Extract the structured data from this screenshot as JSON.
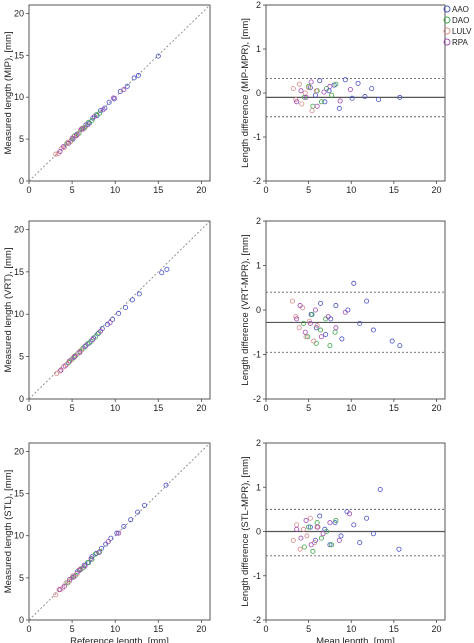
{
  "chart_data": [
    {
      "id": "mip_corr",
      "type": "scatter",
      "xlim": [
        0,
        21
      ],
      "ylim": [
        0,
        21
      ],
      "xticks": [
        "0",
        "5",
        "10",
        "15",
        "20"
      ],
      "yticks": [
        "0",
        "5",
        "10",
        "15",
        "20"
      ],
      "xlabel": "",
      "ylabel": "Measured length (MIP), [mm]",
      "identity_line": true,
      "series": [
        {
          "name": "AAO",
          "x": [
            5.1,
            5.6,
            6.0,
            6.3,
            6.6,
            7.0,
            7.4,
            7.9,
            8.3,
            8.8,
            9.3,
            9.9,
            10.6,
            11.4,
            12.2,
            12.7,
            15.0
          ],
          "y": [
            5.0,
            5.6,
            6.1,
            6.2,
            6.7,
            6.9,
            7.5,
            7.8,
            8.4,
            8.7,
            9.4,
            9.8,
            10.7,
            11.3,
            12.3,
            12.6,
            14.9
          ]
        },
        {
          "name": "DAO",
          "x": [
            4.4,
            4.9,
            5.3,
            5.8,
            6.2,
            6.5,
            6.9,
            7.3,
            7.8,
            8.2
          ],
          "y": [
            4.5,
            4.8,
            5.4,
            5.7,
            6.3,
            6.4,
            7.0,
            7.2,
            7.9,
            8.1
          ]
        },
        {
          "name": "LULV",
          "x": [
            3.1,
            3.4,
            3.8,
            4.1,
            4.5,
            4.8,
            5.2,
            5.6,
            6.0,
            6.4
          ],
          "y": [
            3.2,
            3.3,
            3.9,
            4.0,
            4.6,
            4.7,
            5.3,
            5.5,
            6.1,
            6.3
          ]
        },
        {
          "name": "RPA",
          "x": [
            3.6,
            4.0,
            4.6,
            5.0,
            5.5,
            6.1,
            6.8,
            7.6,
            8.6,
            9.8,
            11.0
          ],
          "y": [
            3.5,
            4.1,
            4.5,
            5.1,
            5.4,
            6.2,
            6.7,
            7.7,
            8.5,
            9.9,
            10.9
          ]
        }
      ]
    },
    {
      "id": "mip_ba",
      "type": "scatter",
      "xlim": [
        0,
        21
      ],
      "ylim": [
        -2,
        2
      ],
      "xticks": [
        "0",
        "5",
        "10",
        "15",
        "20"
      ],
      "yticks": [
        "-2",
        "-1",
        "0",
        "1",
        "2"
      ],
      "xlabel": "",
      "ylabel": "Length difference (MIP-MPR), [mm]",
      "mean": -0.1,
      "upper_loa": 0.33,
      "lower_loa": -0.54,
      "series": [
        {
          "name": "AAO",
          "x": [
            5.2,
            5.8,
            6.3,
            6.9,
            7.4,
            8.0,
            8.6,
            9.3,
            10.1,
            10.8,
            11.6,
            12.4,
            13.2,
            15.7
          ],
          "y": [
            0.12,
            -0.05,
            0.28,
            -0.2,
            0.05,
            0.18,
            -0.35,
            0.3,
            -0.12,
            0.22,
            -0.08,
            0.1,
            -0.15,
            -0.1
          ]
        },
        {
          "name": "DAO",
          "x": [
            4.5,
            5.0,
            5.5,
            6.0,
            6.5,
            7.1,
            7.7,
            8.2
          ],
          "y": [
            -0.1,
            0.15,
            -0.3,
            0.05,
            -0.2,
            0.1,
            -0.05,
            0.2
          ]
        },
        {
          "name": "LULV",
          "x": [
            3.2,
            3.5,
            3.9,
            4.2,
            4.6,
            5.0,
            5.4,
            5.9
          ],
          "y": [
            0.1,
            -0.15,
            0.2,
            -0.25,
            0.0,
            0.12,
            -0.4,
            0.05
          ]
        },
        {
          "name": "RPA",
          "x": [
            3.6,
            4.1,
            4.7,
            5.3,
            6.0,
            6.8,
            7.5,
            8.7,
            9.9
          ],
          "y": [
            -0.2,
            0.05,
            -0.1,
            0.25,
            -0.3,
            0.02,
            0.15,
            -0.18,
            0.08
          ]
        }
      ]
    },
    {
      "id": "vrt_corr",
      "type": "scatter",
      "xlim": [
        0,
        21
      ],
      "ylim": [
        0,
        21
      ],
      "xticks": [
        "0",
        "5",
        "10",
        "15",
        "20"
      ],
      "yticks": [
        "0",
        "5",
        "10",
        "15",
        "20"
      ],
      "xlabel": "",
      "ylabel": "Measured length (VRT), [mm]",
      "identity_line": true,
      "series": [
        {
          "name": "AAO",
          "x": [
            5.2,
            5.7,
            6.1,
            6.5,
            7.0,
            7.5,
            8.0,
            8.5,
            9.1,
            9.7,
            10.4,
            11.2,
            12.0,
            12.8,
            15.4,
            16.0
          ],
          "y": [
            4.9,
            5.4,
            5.8,
            6.2,
            6.6,
            7.2,
            7.7,
            8.3,
            8.8,
            9.4,
            10.1,
            10.8,
            11.7,
            12.4,
            14.9,
            15.3
          ]
        },
        {
          "name": "DAO",
          "x": [
            4.6,
            5.0,
            5.4,
            5.9,
            6.3,
            6.8,
            7.2,
            7.7,
            8.1
          ],
          "y": [
            4.3,
            4.7,
            5.1,
            5.6,
            6.0,
            6.5,
            6.8,
            7.3,
            7.8
          ]
        },
        {
          "name": "LULV",
          "x": [
            3.2,
            3.6,
            4.0,
            4.4,
            4.8,
            5.2,
            5.7,
            6.1
          ],
          "y": [
            3.0,
            3.3,
            3.8,
            4.1,
            4.5,
            5.0,
            5.4,
            5.8
          ]
        },
        {
          "name": "RPA",
          "x": [
            3.7,
            4.2,
            4.7,
            5.3,
            5.9,
            6.6,
            7.4,
            8.3,
            9.4
          ],
          "y": [
            3.4,
            3.9,
            4.5,
            5.0,
            5.5,
            6.3,
            7.0,
            8.0,
            9.0
          ]
        }
      ]
    },
    {
      "id": "vrt_ba",
      "type": "scatter",
      "xlim": [
        0,
        21
      ],
      "ylim": [
        -2,
        2
      ],
      "xticks": [
        "0",
        "5",
        "10",
        "15",
        "20"
      ],
      "yticks": [
        "-2",
        "-1",
        "0",
        "1",
        "2"
      ],
      "xlabel": "",
      "ylabel": "Length difference (VRT-MPR), [mm]",
      "mean": -0.28,
      "upper_loa": 0.4,
      "lower_loa": -0.95,
      "series": [
        {
          "name": "AAO",
          "x": [
            5.3,
            5.9,
            6.4,
            7.0,
            7.6,
            8.2,
            8.9,
            9.6,
            10.3,
            11.0,
            11.8,
            12.6,
            14.8,
            15.7
          ],
          "y": [
            -0.1,
            -0.4,
            0.15,
            -0.55,
            -0.2,
            0.1,
            -0.65,
            0.0,
            0.6,
            -0.3,
            0.2,
            -0.45,
            -0.7,
            -0.8
          ]
        },
        {
          "name": "DAO",
          "x": [
            4.4,
            4.9,
            5.4,
            5.9,
            6.4,
            7.0,
            7.5,
            8.1
          ],
          "y": [
            -0.3,
            -0.6,
            -0.1,
            -0.75,
            -0.45,
            -0.2,
            -0.8,
            -0.5
          ]
        },
        {
          "name": "LULV",
          "x": [
            3.1,
            3.5,
            3.9,
            4.3,
            4.7,
            5.1,
            5.6,
            6.0
          ],
          "y": [
            0.2,
            -0.15,
            -0.4,
            0.05,
            -0.6,
            -0.25,
            -0.7,
            -0.35
          ]
        },
        {
          "name": "RPA",
          "x": [
            3.6,
            4.0,
            4.6,
            5.2,
            5.8,
            6.5,
            7.3,
            8.2,
            9.3
          ],
          "y": [
            -0.2,
            0.1,
            -0.5,
            -0.3,
            0.0,
            -0.6,
            -0.15,
            -0.4,
            -0.05
          ]
        }
      ]
    },
    {
      "id": "stl_corr",
      "type": "scatter",
      "xlim": [
        0,
        21
      ],
      "ylim": [
        0,
        21
      ],
      "xticks": [
        "0",
        "5",
        "10",
        "15",
        "20"
      ],
      "yticks": [
        "0",
        "5",
        "10",
        "15",
        "20"
      ],
      "xlabel": "Reference length, [mm]",
      "ylabel": "Measured length (STL), [mm]",
      "identity_line": true,
      "series": [
        {
          "name": "AAO",
          "x": [
            5.1,
            5.6,
            6.0,
            6.4,
            6.9,
            7.3,
            7.8,
            8.4,
            8.9,
            9.5,
            10.2,
            11.0,
            11.8,
            12.6,
            13.4,
            15.9
          ],
          "y": [
            5.2,
            5.7,
            6.0,
            6.5,
            6.8,
            7.5,
            7.9,
            8.5,
            9.0,
            9.7,
            10.3,
            11.1,
            11.9,
            12.8,
            13.6,
            16.0
          ]
        },
        {
          "name": "DAO",
          "x": [
            4.5,
            5.0,
            5.4,
            5.9,
            6.3,
            6.8,
            7.3,
            7.7,
            8.2
          ],
          "y": [
            4.4,
            5.0,
            5.3,
            5.9,
            6.2,
            6.8,
            7.2,
            7.8,
            8.1
          ]
        },
        {
          "name": "LULV",
          "x": [
            3.1,
            3.5,
            3.9,
            4.3,
            4.7,
            5.1,
            5.6,
            6.0
          ],
          "y": [
            3.0,
            3.6,
            3.8,
            4.4,
            4.6,
            5.2,
            5.5,
            6.1
          ]
        },
        {
          "name": "RPA",
          "x": [
            3.6,
            4.1,
            4.7,
            5.2,
            5.8,
            6.5,
            7.2,
            8.1,
            9.2,
            10.4
          ],
          "y": [
            3.6,
            4.0,
            4.8,
            5.1,
            5.9,
            6.4,
            7.3,
            8.0,
            9.3,
            10.3
          ]
        }
      ]
    },
    {
      "id": "stl_ba",
      "type": "scatter",
      "xlim": [
        0,
        21
      ],
      "ylim": [
        -2,
        2
      ],
      "xticks": [
        "0",
        "5",
        "10",
        "15",
        "20"
      ],
      "yticks": [
        "-2",
        "-1",
        "0",
        "1",
        "2"
      ],
      "xlabel": "Mean length, [mm]",
      "ylabel": "Length difference (STL-MPR), [mm]",
      "mean": 0.0,
      "upper_loa": 0.5,
      "lower_loa": -0.55,
      "series": [
        {
          "name": "AAO",
          "x": [
            5.2,
            5.8,
            6.3,
            6.9,
            7.5,
            8.1,
            8.8,
            9.5,
            10.3,
            11.0,
            11.8,
            12.6,
            13.4,
            15.6
          ],
          "y": [
            0.1,
            -0.2,
            0.35,
            0.05,
            -0.3,
            0.2,
            -0.1,
            0.45,
            0.15,
            -0.25,
            0.3,
            -0.05,
            0.95,
            -0.4
          ]
        },
        {
          "name": "DAO",
          "x": [
            4.5,
            5.0,
            5.5,
            6.0,
            6.5,
            7.1,
            7.7,
            8.2
          ],
          "y": [
            -0.35,
            0.1,
            -0.45,
            0.2,
            -0.15,
            0.0,
            -0.3,
            0.25
          ]
        },
        {
          "name": "LULV",
          "x": [
            3.2,
            3.6,
            4.0,
            4.4,
            4.8,
            5.2,
            5.7,
            6.1
          ],
          "y": [
            -0.2,
            0.15,
            -0.4,
            0.05,
            -0.1,
            0.3,
            -0.25,
            0.1
          ]
        },
        {
          "name": "RPA",
          "x": [
            3.6,
            4.1,
            4.7,
            5.3,
            6.0,
            6.7,
            7.5,
            8.6,
            9.8
          ],
          "y": [
            0.05,
            -0.15,
            0.25,
            -0.3,
            0.1,
            -0.05,
            0.2,
            -0.2,
            0.4
          ]
        }
      ]
    }
  ],
  "legend": {
    "placement": "top-right",
    "items": [
      {
        "label": "AAO",
        "color": "#4b52c8"
      },
      {
        "label": "DAO",
        "color": "#3da64a"
      },
      {
        "label": "LULV",
        "color": "#d98a8a"
      },
      {
        "label": "RPA",
        "color": "#a24bb5"
      }
    ]
  },
  "colors": {
    "AAO": "#4b52c8",
    "DAO": "#3da64a",
    "LULV": "#d98a8a",
    "RPA": "#a24bb5",
    "axis": "#444444",
    "mean_line": "#555555",
    "loa_line": "#666666",
    "identity_line": "#888888"
  }
}
